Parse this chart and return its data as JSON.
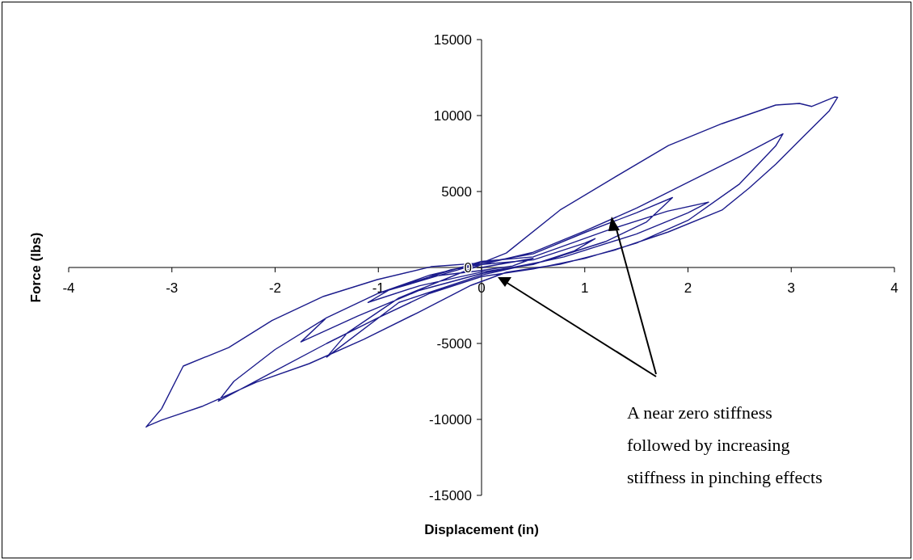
{
  "chart_data": {
    "type": "line",
    "xlabel": "Displacement (in)",
    "ylabel": "Force (lbs)",
    "xlim": [
      -4,
      4
    ],
    "ylim": [
      -15000,
      15000
    ],
    "xticks": [
      -4,
      -3,
      -2,
      -1,
      0,
      1,
      2,
      3,
      4
    ],
    "yticks": [
      -15000,
      -10000,
      -5000,
      0,
      5000,
      10000,
      15000
    ],
    "grid": false,
    "marker": "none",
    "line_style": "solid",
    "annotations": [
      "A near zero stiffness followed by increasing stiffness in pinching effects"
    ],
    "series": [
      {
        "color": "#1c1c8c",
        "x": [
          0,
          0.5,
          0.3,
          0,
          -0.5,
          -0.3,
          0,
          0.5,
          1.0,
          1.1,
          0.9,
          0.5,
          0,
          -0.6,
          -1.1,
          -0.9,
          -0.4,
          0,
          0.5,
          1.0,
          1.5,
          1.85,
          1.6,
          1.2,
          0.6,
          0,
          -0.6,
          -1.2,
          -1.75,
          -1.5,
          -1.0,
          -0.4,
          0,
          0.5,
          1.2,
          1.8,
          2.2,
          2.0,
          1.5,
          0.8,
          0,
          -0.8,
          -1.5,
          -1.3,
          -0.8,
          0,
          0.5,
          1.0,
          1.5,
          2.0,
          2.5,
          2.92,
          2.85,
          2.5,
          2.0,
          1.5,
          1.0,
          0.5,
          0,
          -0.5,
          -1.0,
          -1.5,
          -2.0,
          -2.55,
          -2.4,
          -2.0,
          -1.5,
          -1.0,
          -0.5,
          0,
          0.24,
          0.76,
          1.28,
          1.81,
          2.33,
          2.85,
          3.08,
          3.2,
          3.42,
          3.45,
          3.37,
          3.11,
          2.85,
          2.59,
          2.33,
          1.81,
          1.28,
          0.76,
          0.24,
          -0.1,
          -0.62,
          -1.14,
          -1.67,
          -2.18,
          -2.71,
          -3.1,
          -3.23,
          -3.25,
          -3.1,
          -2.89,
          -2.45,
          -2.03,
          -1.53,
          -1.01,
          -0.49,
          0
        ],
        "values": [
          0,
          600,
          100,
          -200,
          -600,
          -150,
          200,
          500,
          1600,
          1900,
          1100,
          200,
          -300,
          -1200,
          -2300,
          -1500,
          -500,
          300,
          900,
          2300,
          3600,
          4600,
          3000,
          1700,
          400,
          -400,
          -1500,
          -3200,
          -4900,
          -3300,
          -1700,
          -400,
          400,
          700,
          2400,
          3700,
          4300,
          3600,
          2200,
          700,
          -500,
          -2300,
          -5900,
          -4300,
          -2000,
          200,
          1000,
          2400,
          3900,
          5600,
          7300,
          8800,
          8000,
          5500,
          3100,
          1600,
          600,
          -100,
          -600,
          -1700,
          -3300,
          -5000,
          -6800,
          -8800,
          -7500,
          -5400,
          -3300,
          -1700,
          -500,
          300,
          950,
          3780,
          5900,
          8030,
          9470,
          10690,
          10800,
          10600,
          11220,
          11200,
          10320,
          8560,
          6800,
          5210,
          3780,
          2340,
          1120,
          210,
          -320,
          -1170,
          -2980,
          -4730,
          -6330,
          -7550,
          -9150,
          -10050,
          -10420,
          -10500,
          -9300,
          -6490,
          -5270,
          -3490,
          -1900,
          -800,
          50,
          300
        ]
      }
    ]
  }
}
